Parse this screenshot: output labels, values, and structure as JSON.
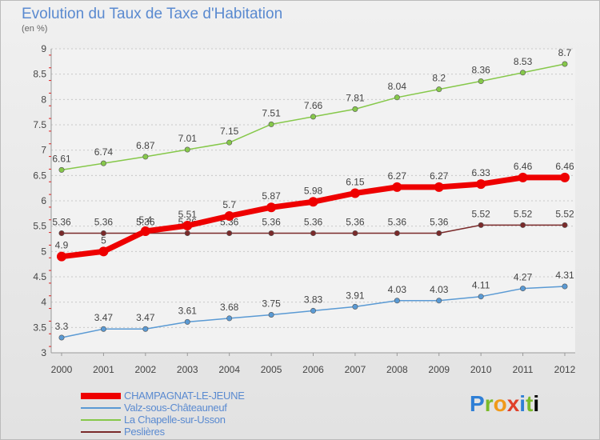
{
  "header": {
    "title": "Evolution du Taux de Taxe d'Habitation",
    "unit": "(en %)"
  },
  "logo": {
    "letters": [
      "P",
      "r",
      "o",
      "x",
      "i",
      "t",
      "i"
    ]
  },
  "chart_data": {
    "type": "line",
    "x": [
      "2000",
      "2001",
      "2002",
      "2003",
      "2004",
      "2005",
      "2006",
      "2007",
      "2008",
      "2009",
      "2010",
      "2011",
      "2012"
    ],
    "yticks": [
      "3",
      "3.5",
      "4",
      "4.5",
      "5",
      "5.5",
      "6",
      "6.5",
      "7",
      "7.5",
      "8",
      "8.5",
      "9"
    ],
    "ylim": [
      3,
      9
    ],
    "grid": "horizontal-dotted",
    "legend_position": "bottom-left",
    "series": [
      {
        "name": "La Chapelle-sur-Usson",
        "color": "#86c84a",
        "width": 1.5,
        "values": [
          6.61,
          6.74,
          6.87,
          7.01,
          7.15,
          7.51,
          7.66,
          7.81,
          8.04,
          8.2,
          8.36,
          8.53,
          8.7
        ],
        "labels": [
          "6.61",
          "6.74",
          "6.87",
          "7.01",
          "7.15",
          "7.51",
          "7.66",
          "7.81",
          "8.04",
          "8.2",
          "8.36",
          "8.53",
          "8.7"
        ]
      },
      {
        "name": "Peslières",
        "color": "#7a2a2a",
        "width": 1.5,
        "values": [
          5.36,
          5.36,
          5.36,
          5.36,
          5.36,
          5.36,
          5.36,
          5.36,
          5.36,
          5.36,
          5.52,
          5.52,
          5.52
        ],
        "labels": [
          "5.36",
          "5.36",
          "5.36",
          "5.36",
          "5.36",
          "5.36",
          "5.36",
          "5.36",
          "5.36",
          "5.36",
          "5.52",
          "5.52",
          "5.52"
        ]
      },
      {
        "name": "Valz-sous-Châteauneuf",
        "color": "#5a9ad4",
        "width": 1.5,
        "values": [
          3.3,
          3.47,
          3.47,
          3.61,
          3.68,
          3.75,
          3.83,
          3.91,
          4.03,
          4.03,
          4.11,
          4.27,
          4.31
        ],
        "labels": [
          "3.3",
          "3.47",
          "3.47",
          "3.61",
          "3.68",
          "3.75",
          "3.83",
          "3.91",
          "4.03",
          "4.03",
          "4.11",
          "4.27",
          "4.31"
        ]
      },
      {
        "name": "CHAMPAGNAT-LE-JEUNE",
        "color": "#ee0000",
        "width": 7,
        "values": [
          4.9,
          5,
          5.4,
          5.51,
          5.7,
          5.87,
          5.98,
          6.15,
          6.27,
          6.27,
          6.33,
          6.46,
          6.46
        ],
        "labels": [
          "4.9",
          "5",
          "5.4",
          "5.51",
          "5.7",
          "5.87",
          "5.98",
          "6.15",
          "6.27",
          "6.27",
          "6.33",
          "6.46",
          "6.46"
        ]
      }
    ],
    "legend_order": [
      "CHAMPAGNAT-LE-JEUNE",
      "Valz-sous-Châteauneuf",
      "La Chapelle-sur-Usson",
      "Peslières"
    ]
  }
}
